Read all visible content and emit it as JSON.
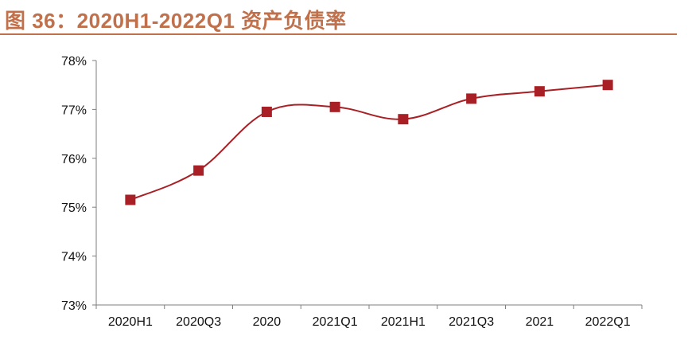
{
  "figure": {
    "title": "图 36：2020H1-2022Q1 资产负债率",
    "title_color": "#C0704A"
  },
  "chart_data": {
    "type": "line",
    "title": "图 36：2020H1-2022Q1 资产负债率",
    "xlabel": "",
    "ylabel": "",
    "categories": [
      "2020H1",
      "2020Q3",
      "2020",
      "2021Q1",
      "2021H1",
      "2021Q3",
      "2021",
      "2022Q1"
    ],
    "series": [
      {
        "values": [
          75.15,
          75.75,
          76.95,
          77.05,
          76.8,
          77.22,
          77.37,
          77.5
        ],
        "color": "#A82025",
        "marker": "square"
      }
    ],
    "ylim": [
      73,
      78
    ],
    "yticks": [
      73,
      74,
      75,
      76,
      77,
      78
    ],
    "ytick_labels": [
      "73%",
      "74%",
      "75%",
      "76%",
      "77%",
      "78%"
    ],
    "grid": false,
    "legend": "none",
    "smooth": true
  }
}
